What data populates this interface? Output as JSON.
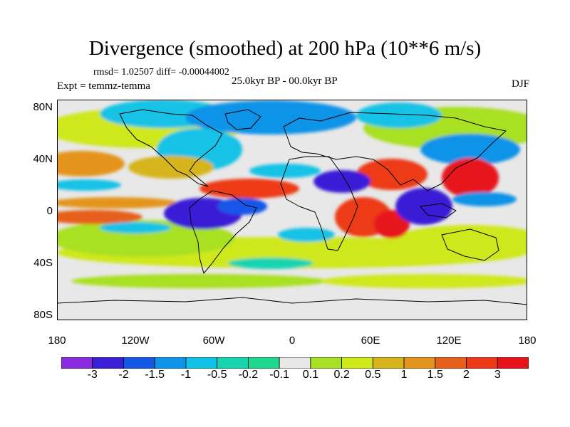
{
  "title": "Divergence (smoothed) at 200 hPa (10**6 m/s)",
  "stats_text": "rmsd= 1.02507 diff= -0.00044002",
  "experiment_text": "Expt = temmz-temma",
  "period_text": "25.0kyr BP - 00.0kyr BP",
  "season_text": "DJF",
  "lat_labels": [
    "80N",
    "40N",
    "0",
    "40S",
    "80S"
  ],
  "lon_labels": [
    "180",
    "120W",
    "60W",
    "0",
    "60E",
    "120E",
    "180"
  ],
  "colorbar": {
    "labels": [
      "-3",
      "-2",
      "-1.5",
      "-1",
      "-0.5",
      "-0.2",
      "-0.1",
      "0.1",
      "0.2",
      "0.5",
      "1",
      "1.5",
      "2",
      "3"
    ],
    "colors": [
      "#8a2be2",
      "#3a1fd6",
      "#1457e8",
      "#0f93e8",
      "#12c2e6",
      "#16d4b0",
      "#1ed890",
      "#e8e8e8",
      "#a8e024",
      "#cfe81a",
      "#d6b41c",
      "#e4941c",
      "#e6601a",
      "#ec3a18",
      "#e6141a"
    ]
  },
  "colors": {
    "neutral": "#e8e8e8",
    "coastline": "#000000"
  }
}
